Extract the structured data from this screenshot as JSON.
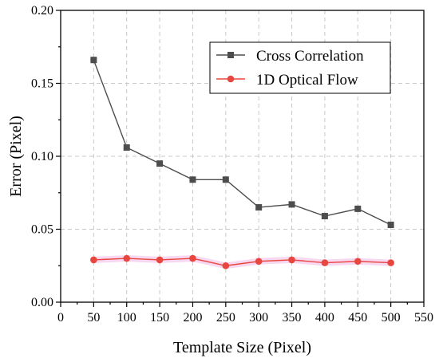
{
  "chart_data": {
    "type": "line",
    "xlabel": "Template Size (Pixel)",
    "ylabel": "Error (Pixel)",
    "xlim": [
      0,
      550
    ],
    "ylim": [
      0,
      0.2
    ],
    "xticks": [
      "0",
      "50",
      "100",
      "150",
      "200",
      "250",
      "300",
      "350",
      "400",
      "450",
      "500",
      "550"
    ],
    "yticks": [
      "0.00",
      "0.05",
      "0.10",
      "0.15",
      "0.20"
    ],
    "grid": true,
    "legend_position": "top-right",
    "x": [
      50,
      100,
      150,
      200,
      250,
      300,
      350,
      400,
      450,
      500
    ],
    "series": [
      {
        "name": "Cross Correlation",
        "color": "#4d4d4d",
        "marker": "square",
        "values": [
          0.166,
          0.106,
          0.095,
          0.084,
          0.084,
          0.065,
          0.067,
          0.059,
          0.064,
          0.053
        ]
      },
      {
        "name": "1D Optical Flow",
        "color": "#e8473f",
        "marker": "circle",
        "values": [
          0.029,
          0.03,
          0.029,
          0.03,
          0.025,
          0.028,
          0.029,
          0.027,
          0.028,
          0.027
        ]
      }
    ]
  }
}
